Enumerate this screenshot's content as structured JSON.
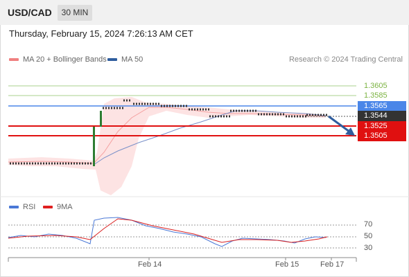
{
  "header": {
    "symbol": "USD/CAD",
    "timeframe": "30 MIN"
  },
  "datetime": "Thursday, February 15, 2024 7:26:13 AM CET",
  "legend": {
    "bb": {
      "label": "MA 20 + Bollinger Bands",
      "color": "#f08080"
    },
    "ma50": {
      "label": "MA 50",
      "color": "#2f5d9e"
    }
  },
  "credit": "Research © 2024 Trading Central",
  "levels": [
    {
      "value": "1.3605",
      "style": "green"
    },
    {
      "value": "1.3585",
      "style": "green"
    },
    {
      "value": "1.3565",
      "style": "blue"
    },
    {
      "value": "1.3544",
      "style": "dark"
    },
    {
      "value": "1.3525",
      "style": "red"
    },
    {
      "value": "1.3505",
      "style": "red"
    }
  ],
  "rsi_legend": {
    "rsi": {
      "label": "RSI",
      "color": "#4a78d6"
    },
    "ma": {
      "label": "9MA",
      "color": "#e02020"
    }
  },
  "rsi_levels": [
    "70",
    "50",
    "30"
  ],
  "x_labels": [
    "Feb 14",
    "Feb 15",
    "Feb 17"
  ],
  "colors": {
    "green_line": "#a8d08d",
    "blue_line": "#4a86e8",
    "red_line": "#e01010",
    "dark_label": "#333333",
    "arrow": "#2f5d9e"
  }
}
